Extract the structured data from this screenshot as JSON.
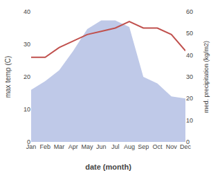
{
  "chart_data": {
    "type": "line",
    "xlabel": "date (month)",
    "ylabel": "max temp (C)",
    "y2label": "med. precipitation (kg/m2)",
    "categories": [
      "Jan",
      "Feb",
      "Mar",
      "Apr",
      "May",
      "Jun",
      "Jul",
      "Aug",
      "Sep",
      "Oct",
      "Nov",
      "Dec"
    ],
    "series": [
      {
        "type": "area",
        "axis": "y2",
        "color": "#bfc9e8",
        "values": [
          24,
          28,
          33,
          42,
          52,
          56,
          56,
          53,
          30,
          27,
          21,
          20
        ]
      },
      {
        "type": "line",
        "color": "#c0504d",
        "values": [
          26,
          26,
          29,
          31,
          33,
          34,
          35,
          37,
          35,
          35,
          33,
          28
        ]
      }
    ],
    "ylim": [
      0,
      40
    ],
    "yticks": [
      0,
      10,
      20,
      30,
      40
    ],
    "y2lim": [
      0,
      60
    ],
    "y2ticks": [
      0,
      10,
      20,
      30,
      40,
      50,
      60
    ],
    "grid": false
  }
}
